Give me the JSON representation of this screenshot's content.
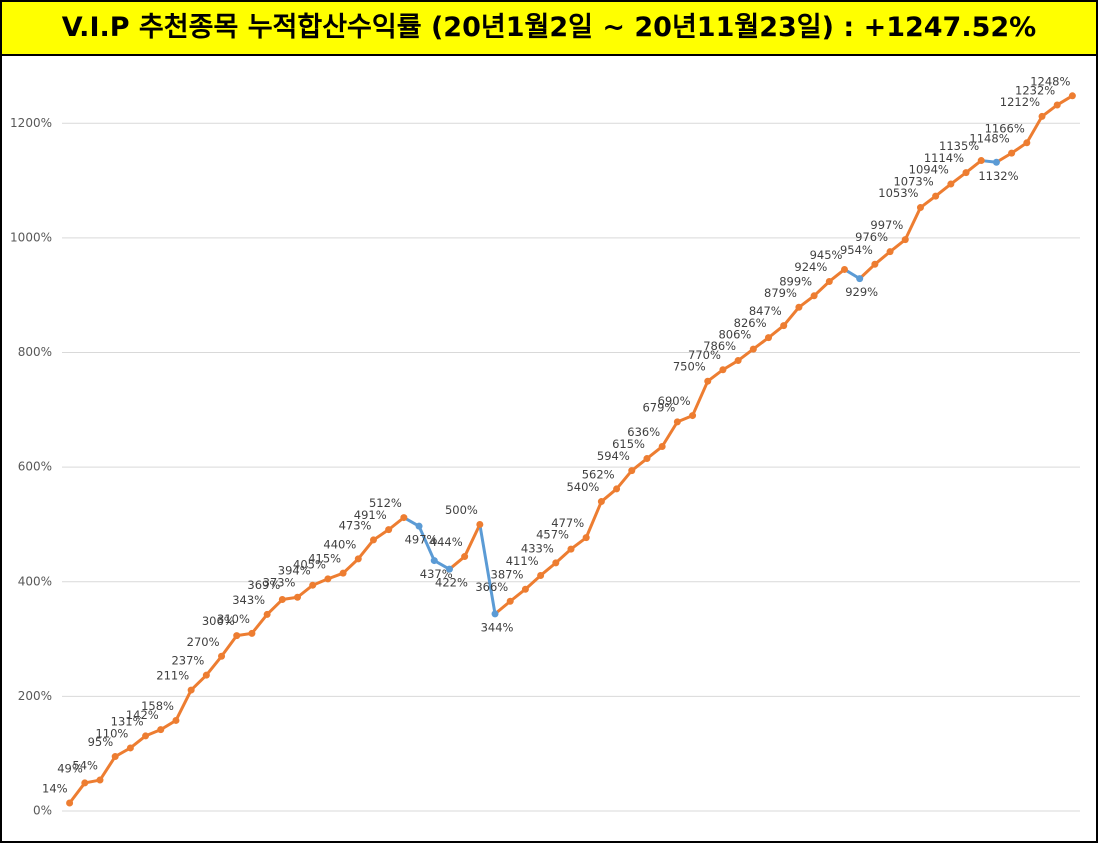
{
  "chart_data": {
    "type": "line",
    "title": "V.I.P 추천종목 누적합산수익률 (20년1월2일 ~ 20년11월23일) : +1247.52%",
    "categories": [
      null,
      null,
      null,
      null,
      null,
      null,
      null,
      null,
      null,
      null,
      null,
      null,
      null,
      null,
      null,
      null,
      null,
      null,
      null,
      null,
      null,
      null,
      null,
      null,
      null,
      null,
      null,
      null,
      null,
      null,
      null,
      null,
      null,
      null,
      null,
      null,
      null,
      null,
      null,
      null,
      null,
      null,
      null,
      null,
      null,
      null,
      null,
      null,
      null,
      null,
      null,
      null,
      null,
      null,
      null,
      null,
      null,
      null,
      null,
      null,
      null,
      null,
      null,
      null,
      null,
      null,
      null
    ],
    "values": [
      14,
      49,
      54,
      95,
      110,
      131,
      142,
      158,
      211,
      237,
      270,
      306,
      310,
      343,
      369,
      373,
      394,
      405,
      415,
      440,
      473,
      491,
      512,
      497,
      437,
      422,
      444,
      500,
      344,
      366,
      387,
      411,
      433,
      457,
      477,
      540,
      562,
      594,
      615,
      636,
      679,
      690,
      750,
      770,
      786,
      806,
      826,
      847,
      879,
      899,
      924,
      945,
      929,
      954,
      976,
      997,
      1053,
      1073,
      1094,
      1114,
      1135,
      1132,
      1148,
      1166,
      1212,
      1232,
      1248
    ],
    "value_labels": [
      "14%",
      "49%",
      "54%",
      "95%",
      "110%",
      "131%",
      "142%",
      "158%",
      "211%",
      "237%",
      "270%",
      "306%",
      "310%",
      "343%",
      "369%",
      "373%",
      "394%",
      "405%",
      "415%",
      "440%",
      "473%",
      "491%",
      "512%",
      "497%",
      "437%",
      "422%",
      "444%",
      "500%",
      "344%",
      "366%",
      "387%",
      "411%",
      "433%",
      "457%",
      "477%",
      "540%",
      "562%",
      "594%",
      "615%",
      "636%",
      "679%",
      "690%",
      "750%",
      "770%",
      "786%",
      "806%",
      "826%",
      "847%",
      "879%",
      "899%",
      "924%",
      "945%",
      "929%",
      "954%",
      "976%",
      "997%",
      "1053%",
      "1073%",
      "1094%",
      "1114%",
      "1135%",
      "1132%",
      "1148%",
      "1166%",
      "1212%",
      "1232%",
      "1248%"
    ],
    "color": "#ed7d31",
    "down_color": "#5b9bd5",
    "ylim": [
      0,
      1300
    ],
    "yticks": [
      {
        "value": 0,
        "label": "0%"
      },
      {
        "value": 200,
        "label": "200%"
      },
      {
        "value": 400,
        "label": "400%"
      },
      {
        "value": 600,
        "label": "600%"
      },
      {
        "value": 800,
        "label": "800%"
      },
      {
        "value": 1000,
        "label": "1000%"
      },
      {
        "value": 1200,
        "label": "1200%"
      }
    ],
    "grid": true
  }
}
